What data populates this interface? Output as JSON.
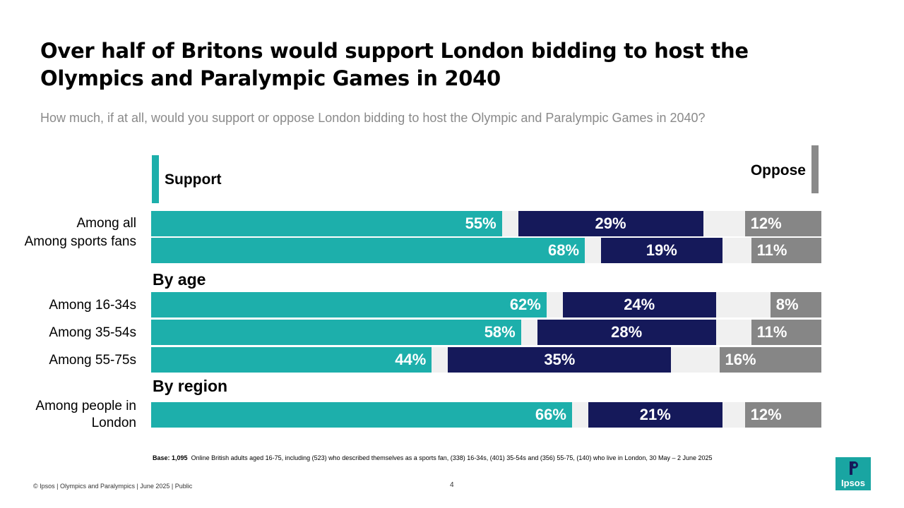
{
  "title": "Over half of Britons would support London bidding to host the Olympics and Paralympic Games in 2040",
  "subtitle": "How much, if at all, would you support or oppose London bidding to host the Olympic and Paralympic Games in 2040?",
  "legend": {
    "support": "Support",
    "oppose": "Oppose"
  },
  "colors": {
    "support": "#1dafab",
    "oppose": "#15195a",
    "third": "#868686",
    "track": "#f0f0f0"
  },
  "sections": {
    "age": "By age",
    "region": "By region"
  },
  "chart_data": {
    "type": "bar",
    "orientation": "horizontal",
    "categories": [
      "Among all",
      "Among sports fans",
      "Among 16-34s",
      "Among 35-54s",
      "Among 55-75s",
      "Among people in London"
    ],
    "series": [
      {
        "name": "Support",
        "values": [
          55,
          68,
          62,
          58,
          44,
          66
        ],
        "labels": [
          "55%",
          "68%",
          "62%",
          "58%",
          "44%",
          "66%"
        ]
      },
      {
        "values": [
          29,
          19,
          24,
          28,
          35,
          21
        ],
        "labels": [
          "29%",
          "19%",
          "24%",
          "28%",
          "35%",
          "21%"
        ]
      },
      {
        "name": "Oppose",
        "values": [
          12,
          11,
          8,
          11,
          16,
          12
        ],
        "labels": [
          "12%",
          "11%",
          "8%",
          "11%",
          "16%",
          "12%"
        ]
      }
    ],
    "xlim": [
      0,
      100
    ]
  },
  "base": {
    "bold": "Base: 1,095",
    "text": "Online British adults aged 16-75, including (523) who described themselves as a sports fan, (338) 16-34s, (401) 35-54s and (356) 55-75, (140) who live in London, 30 May – 2 June 2025"
  },
  "footer": "© Ipsos | Olympics and Paralympics | June 2025 | Public",
  "page_number": "4",
  "logo_text": "Ipsos"
}
